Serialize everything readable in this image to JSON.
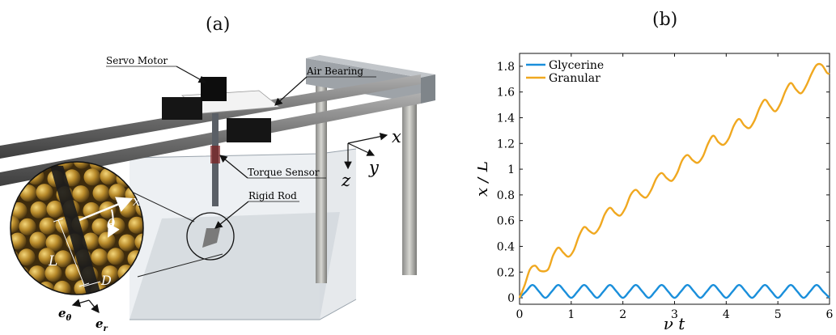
{
  "panels": {
    "a": {
      "label": "(a)"
    },
    "b": {
      "label": "(b)"
    }
  },
  "apparatus": {
    "callouts": {
      "servo_motor": "Servo Motor",
      "air_bearing": "Air Bearing",
      "torque_sensor": "Torque Sensor",
      "rigid_rod": "Rigid Rod"
    },
    "axes": {
      "x": "x",
      "y": "y",
      "z": "z"
    },
    "inset": {
      "x": "x",
      "theta": "θ",
      "L": "L",
      "D": "D"
    },
    "basis": {
      "e_theta": "e",
      "e_theta_sub": "θ",
      "e_r": "e",
      "e_r_sub": "r"
    }
  },
  "chart_data": {
    "type": "line",
    "xlabel": "ν t",
    "ylabel": "x / L",
    "xlim": [
      0,
      6
    ],
    "ylim": [
      -0.05,
      1.9
    ],
    "xticks": [
      0,
      1,
      2,
      3,
      4,
      5,
      6
    ],
    "yticks": [
      0,
      0.2,
      0.4,
      0.6,
      0.8,
      1,
      1.2,
      1.4,
      1.6,
      1.8
    ],
    "ytick_labels": [
      "0",
      "0.2",
      "0.4",
      "0.6",
      "0.8",
      "1",
      "1.2",
      "1.4",
      "1.6",
      "1.8"
    ],
    "legend_position": "top-left",
    "series": [
      {
        "name": "Glycerine",
        "color": "#1a8fdb",
        "x": [
          0,
          0.125,
          0.25,
          0.375,
          0.5,
          0.625,
          0.75,
          0.875,
          1.0,
          1.125,
          1.25,
          1.375,
          1.5,
          1.625,
          1.75,
          1.875,
          2.0,
          2.125,
          2.25,
          2.375,
          2.5,
          2.625,
          2.75,
          2.875,
          3.0,
          3.125,
          3.25,
          3.375,
          3.5,
          3.625,
          3.75,
          3.875,
          4.0,
          4.125,
          4.25,
          4.375,
          4.5,
          4.625,
          4.75,
          4.875,
          5.0,
          5.125,
          5.25,
          5.375,
          5.5,
          5.625,
          5.75,
          5.875,
          6.0
        ],
        "y": [
          0,
          0.05,
          0.1,
          0.05,
          0,
          0.05,
          0.1,
          0.05,
          0,
          0.05,
          0.1,
          0.05,
          0,
          0.05,
          0.1,
          0.05,
          0,
          0.05,
          0.1,
          0.05,
          0,
          0.05,
          0.1,
          0.05,
          0,
          0.05,
          0.1,
          0.05,
          0,
          0.05,
          0.1,
          0.05,
          0,
          0.05,
          0.1,
          0.05,
          0,
          0.05,
          0.1,
          0.05,
          0,
          0.05,
          0.1,
          0.05,
          0,
          0.05,
          0.1,
          0.05,
          0
        ]
      },
      {
        "name": "Granular",
        "color": "#f0a820",
        "x": [
          0,
          0.1,
          0.2,
          0.3,
          0.4,
          0.55,
          0.65,
          0.75,
          0.85,
          0.95,
          1.05,
          1.15,
          1.25,
          1.35,
          1.45,
          1.55,
          1.65,
          1.75,
          1.85,
          1.95,
          2.05,
          2.15,
          2.25,
          2.35,
          2.45,
          2.55,
          2.65,
          2.75,
          2.85,
          2.95,
          3.05,
          3.15,
          3.25,
          3.35,
          3.45,
          3.55,
          3.65,
          3.75,
          3.85,
          3.95,
          4.05,
          4.15,
          4.25,
          4.35,
          4.45,
          4.55,
          4.65,
          4.75,
          4.85,
          4.95,
          5.05,
          5.15,
          5.25,
          5.35,
          5.45,
          5.55,
          5.65,
          5.75,
          5.85,
          5.95,
          6.0
        ],
        "y": [
          0,
          0.1,
          0.22,
          0.25,
          0.21,
          0.22,
          0.33,
          0.39,
          0.35,
          0.32,
          0.37,
          0.48,
          0.55,
          0.52,
          0.5,
          0.55,
          0.65,
          0.7,
          0.66,
          0.64,
          0.7,
          0.8,
          0.84,
          0.8,
          0.78,
          0.84,
          0.93,
          0.97,
          0.93,
          0.91,
          0.97,
          1.07,
          1.11,
          1.07,
          1.05,
          1.1,
          1.2,
          1.26,
          1.21,
          1.19,
          1.24,
          1.34,
          1.39,
          1.34,
          1.32,
          1.38,
          1.48,
          1.54,
          1.49,
          1.45,
          1.51,
          1.61,
          1.67,
          1.62,
          1.59,
          1.65,
          1.74,
          1.81,
          1.81,
          1.75,
          1.74
        ]
      }
    ]
  }
}
